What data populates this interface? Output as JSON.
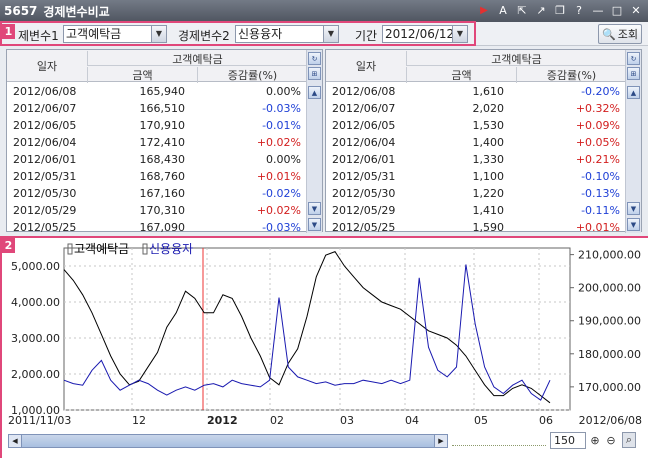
{
  "window": {
    "code": "5657",
    "title": "경제변수비교"
  },
  "controls": {
    "var1_label": "제변수1",
    "var1_value": "고객예탁금",
    "var2_label": "경제변수2",
    "var2_value": "신용융자",
    "period_label": "기간",
    "period_value": "2012/06/12",
    "search_label": "조회",
    "badge1": "1",
    "badge2": "2"
  },
  "left_table": {
    "date_header": "일자",
    "group_header": "고객예탁금",
    "amount_header": "금액",
    "change_header": "증감률(%)",
    "rows": [
      {
        "date": "2012/06/08",
        "amount": "165,940",
        "change": "0.00%",
        "dir": "zero"
      },
      {
        "date": "2012/06/07",
        "amount": "166,510",
        "change": "-0.03%",
        "dir": "neg"
      },
      {
        "date": "2012/06/05",
        "amount": "170,910",
        "change": "-0.01%",
        "dir": "neg"
      },
      {
        "date": "2012/06/04",
        "amount": "172,410",
        "change": "+0.02%",
        "dir": "pos"
      },
      {
        "date": "2012/06/01",
        "amount": "168,430",
        "change": "0.00%",
        "dir": "zero"
      },
      {
        "date": "2012/05/31",
        "amount": "168,760",
        "change": "+0.01%",
        "dir": "pos"
      },
      {
        "date": "2012/05/30",
        "amount": "167,160",
        "change": "-0.02%",
        "dir": "neg"
      },
      {
        "date": "2012/05/29",
        "amount": "170,310",
        "change": "+0.02%",
        "dir": "pos"
      },
      {
        "date": "2012/05/25",
        "amount": "167,090",
        "change": "-0.03%",
        "dir": "neg"
      }
    ]
  },
  "right_table": {
    "date_header": "일자",
    "group_header": "고객예탁금",
    "amount_header": "금액",
    "change_header": "증감률(%)",
    "rows": [
      {
        "date": "2012/06/08",
        "amount": "1,610",
        "change": "-0.20%",
        "dir": "neg"
      },
      {
        "date": "2012/06/07",
        "amount": "2,020",
        "change": "+0.32%",
        "dir": "pos"
      },
      {
        "date": "2012/06/05",
        "amount": "1,530",
        "change": "+0.09%",
        "dir": "pos"
      },
      {
        "date": "2012/06/04",
        "amount": "1,400",
        "change": "+0.05%",
        "dir": "pos"
      },
      {
        "date": "2012/06/01",
        "amount": "1,330",
        "change": "+0.21%",
        "dir": "pos"
      },
      {
        "date": "2012/05/31",
        "amount": "1,100",
        "change": "-0.10%",
        "dir": "neg"
      },
      {
        "date": "2012/05/30",
        "amount": "1,220",
        "change": "-0.13%",
        "dir": "neg"
      },
      {
        "date": "2012/05/29",
        "amount": "1,410",
        "change": "-0.11%",
        "dir": "neg"
      },
      {
        "date": "2012/05/25",
        "amount": "1,590",
        "change": "+0.01%",
        "dir": "pos"
      }
    ]
  },
  "chart_data": {
    "type": "line",
    "legend": [
      "고객예탁금",
      "신용융자"
    ],
    "left_ticks": [
      "5,000.00",
      "4,000.00",
      "3,000.00",
      "2,000.00",
      "1,000.00"
    ],
    "right_ticks": [
      "210,000.00",
      "200,000.00",
      "190,000.00",
      "180,000.00",
      "170,000.00"
    ],
    "x_start": "2011/11/03",
    "x_end": "2012/06/08",
    "x_ticks": [
      "12",
      "2012",
      "02",
      "03",
      "04",
      "05",
      "06"
    ],
    "ylim_left": [
      1000,
      5500
    ],
    "ylim_right": [
      163000,
      212000
    ],
    "series": [
      {
        "name": "고객예탁금",
        "axis": "left",
        "color": "#000000",
        "values": [
          4900,
          4600,
          4200,
          3700,
          3100,
          2500,
          2000,
          1700,
          1800,
          2200,
          2600,
          3300,
          3700,
          4300,
          4100,
          3700,
          3700,
          4200,
          4100,
          3600,
          3000,
          2500,
          1900,
          1700,
          2300,
          2700,
          3600,
          4700,
          5300,
          5400,
          5000,
          4700,
          4400,
          4200,
          4000,
          3900,
          3800,
          3600,
          3400,
          3200,
          3100,
          3000,
          2800,
          2500,
          2100,
          1700,
          1400,
          1400,
          1600,
          1700,
          1600,
          1400,
          1200
        ]
      },
      {
        "name": "신용융자",
        "axis": "right",
        "color": "#1a1ab0",
        "values": [
          172000,
          171000,
          170500,
          175000,
          178000,
          172000,
          169000,
          170500,
          172000,
          171000,
          169000,
          167500,
          169000,
          170000,
          169000,
          170500,
          171000,
          170000,
          172000,
          171000,
          170500,
          170000,
          172000,
          197000,
          176000,
          173000,
          172000,
          171000,
          171500,
          170500,
          171000,
          171000,
          172000,
          171500,
          171000,
          172000,
          171000,
          172000,
          203000,
          182000,
          175000,
          173000,
          176000,
          207000,
          189000,
          176000,
          170000,
          168000,
          170500,
          172000,
          168000,
          166000,
          172000
        ]
      }
    ]
  },
  "chart_footer": {
    "zoom": "150"
  }
}
